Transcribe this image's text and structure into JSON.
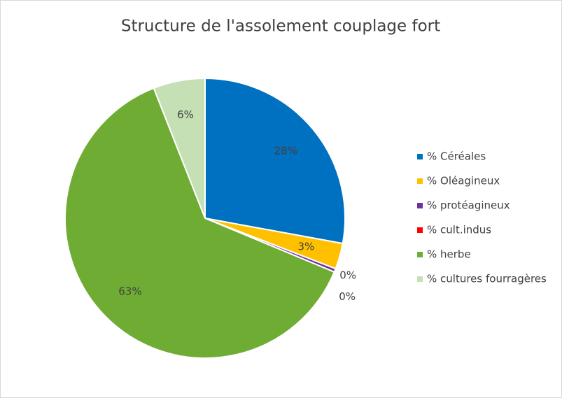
{
  "chart_data": {
    "type": "pie",
    "title": "Structure de l'assolement couplage fort",
    "categories": [
      "% Céréales",
      "% Oléagineux",
      "% protéagineux",
      "% cult.indus",
      "% herbe",
      "% cultures fourragères"
    ],
    "values": [
      28,
      3,
      0.4,
      0,
      63,
      6
    ],
    "value_labels": [
      "28%",
      "3%",
      "0%",
      "0%",
      "63%",
      "6%"
    ],
    "colors": [
      "#0070c0",
      "#ffc000",
      "#7030a0",
      "#ff0000",
      "#6fac34",
      "#c5e0b4"
    ],
    "legend": "right"
  }
}
